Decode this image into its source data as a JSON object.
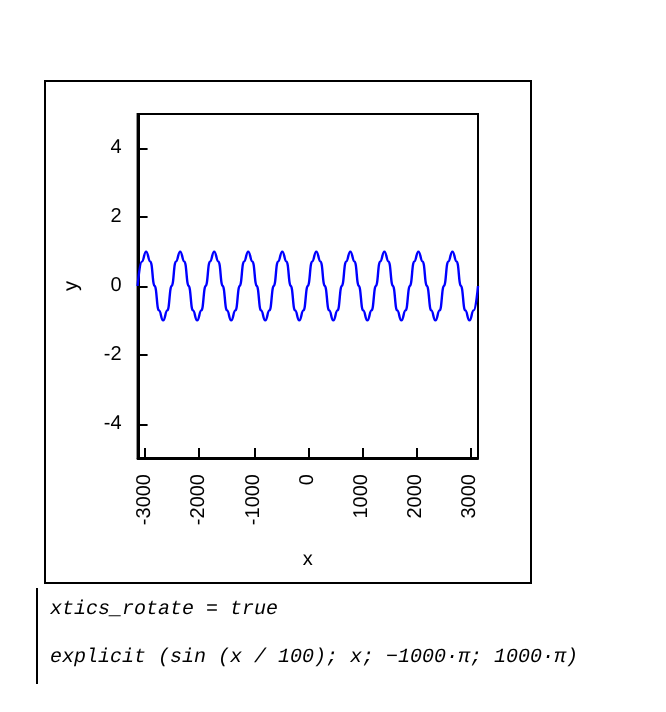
{
  "chart_data": {
    "type": "line",
    "x": [
      -3142,
      -3063,
      -2985,
      -2906,
      -2827,
      -2749,
      -2670,
      -2592,
      -2513,
      -2435,
      -2356,
      -2278,
      -2199,
      -2121,
      -2042,
      -1964,
      -1885,
      -1806,
      -1728,
      -1649,
      -1571,
      -1492,
      -1414,
      -1335,
      -1257,
      -1178,
      -1100,
      -1021,
      -942,
      -864,
      -785,
      -707,
      -628,
      -550,
      -471,
      -393,
      -314,
      -236,
      -157,
      -79,
      0,
      79,
      157,
      236,
      314,
      393,
      471,
      550,
      628,
      707,
      785,
      864,
      942,
      1021,
      1100,
      1178,
      1257,
      1335,
      1414,
      1492,
      1571,
      1649,
      1728,
      1806,
      1885,
      1964,
      2042,
      2121,
      2199,
      2278,
      2356,
      2435,
      2513,
      2592,
      2670,
      2749,
      2827,
      2906,
      2985,
      3063,
      3142
    ],
    "series": [
      {
        "color": "#0000ff",
        "values": [
          0,
          0.71,
          1,
          0.71,
          0,
          -0.71,
          -1,
          -0.71,
          0,
          0.71,
          1,
          0.71,
          0,
          -0.71,
          -1,
          -0.71,
          0,
          0.71,
          1,
          0.71,
          0,
          -0.71,
          -1,
          -0.71,
          0,
          0.71,
          1,
          0.71,
          0,
          -0.71,
          -1,
          -0.71,
          0,
          0.71,
          1,
          0.71,
          0,
          -0.71,
          -1,
          -0.71,
          0,
          0.71,
          1,
          0.71,
          0,
          -0.71,
          -1,
          -0.71,
          0,
          0.71,
          1,
          0.71,
          0,
          -0.71,
          -1,
          -0.71,
          0,
          0.71,
          1,
          0.71,
          0,
          -0.71,
          -1,
          -0.71,
          0,
          0.71,
          1,
          0.71,
          0,
          -0.71,
          -1,
          -0.71,
          0,
          0.71,
          1,
          0.71,
          0,
          -0.71,
          -1,
          -0.71,
          0
        ]
      }
    ],
    "xlabel": "x",
    "ylabel": "y",
    "xlim": [
      -3142,
      3142
    ],
    "xticks": [
      -3000,
      -2000,
      -1000,
      0,
      1000,
      2000,
      3000
    ],
    "ylim": [
      -5,
      5
    ],
    "yticks": [
      -4,
      -2,
      0,
      2,
      4
    ],
    "grid": false,
    "marker": "none",
    "line_style": "solid",
    "annotations": [
      "xtics_rotate = true",
      "explicit (sin (x / 100); x; −1000·π; 1000·π)"
    ]
  }
}
